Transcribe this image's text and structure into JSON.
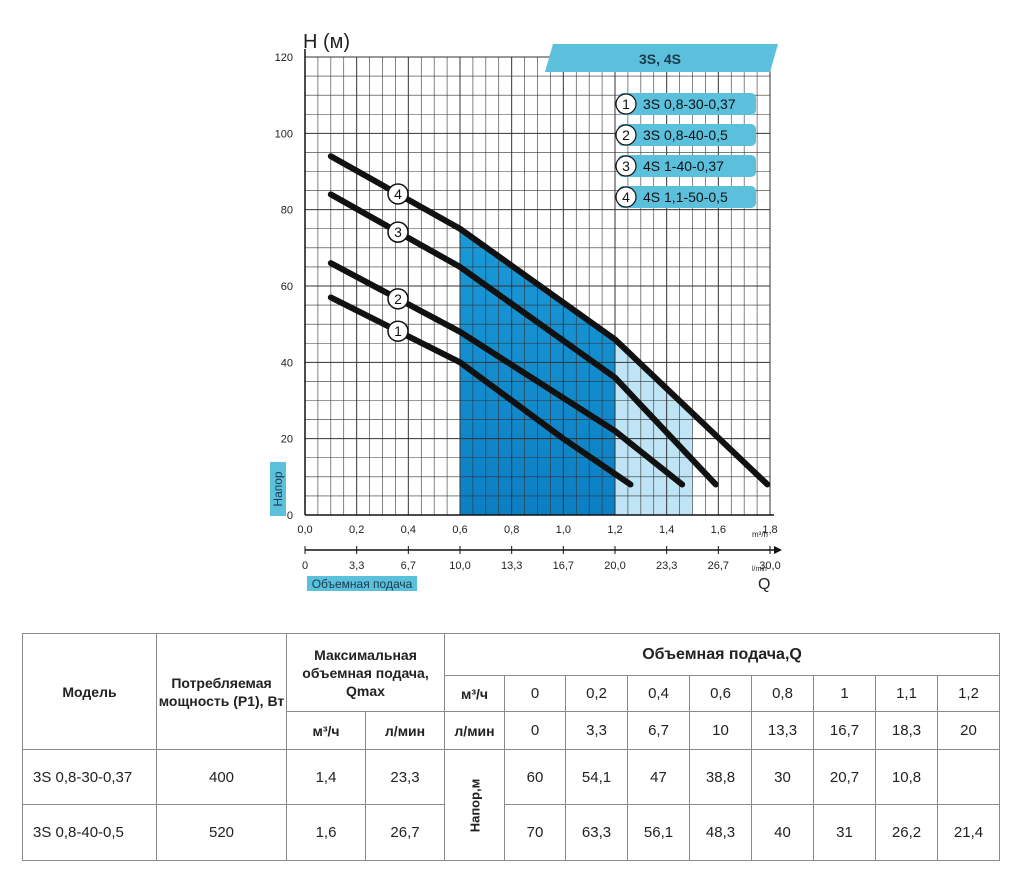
{
  "chart_data": {
    "type": "line",
    "y_axis_title": "H (м)",
    "y_side_label": "Напор",
    "x_side_label": "Объемная подача",
    "q_letter": "Q",
    "ylim": [
      0,
      120
    ],
    "xlim_m3h": [
      0,
      1.8
    ],
    "xlim_lmin": [
      0,
      30
    ],
    "y_ticks": [
      "0",
      "20",
      "40",
      "60",
      "80",
      "100",
      "120"
    ],
    "x_ticks_m3h": [
      "0,0",
      "0,2",
      "0,4",
      "0,6",
      "0,8",
      "1,0",
      "1,2",
      "1,4",
      "1,6",
      "1,8"
    ],
    "x_unit_m3h": "m³/h",
    "x_ticks_lmin": [
      "0",
      "3,3",
      "6,7",
      "10,0",
      "13,3",
      "16,7",
      "20,0",
      "23,3",
      "26,7",
      "30,0"
    ],
    "x_unit_lmin": "l/min",
    "banner": "3S, 4S",
    "grid": true,
    "legend_position": "top-right",
    "series": [
      {
        "name": "3S 0,8-30-0,37",
        "marker": "1",
        "x": [
          0.1,
          0.6,
          1.0,
          1.26
        ],
        "y": [
          57,
          40,
          20,
          8
        ]
      },
      {
        "name": "3S 0,8-40-0,5",
        "marker": "2",
        "x": [
          0.1,
          0.6,
          1.2,
          1.46
        ],
        "y": [
          66,
          48,
          22,
          8
        ]
      },
      {
        "name": "4S 1-40-0,37",
        "marker": "3",
        "x": [
          0.1,
          0.6,
          1.2,
          1.59
        ],
        "y": [
          84,
          65,
          36,
          8
        ]
      },
      {
        "name": "4S 1,1-50-0,5",
        "marker": "4",
        "x": [
          0.1,
          0.6,
          1.2,
          1.79
        ],
        "y": [
          94,
          75,
          46,
          8
        ]
      }
    ],
    "colors": {
      "dark_band": "#1a9ad8",
      "light_band": "#bfe4f5",
      "banner": "#5bc0dc",
      "curve": "#111111"
    }
  },
  "table": {
    "h_model": "Модель",
    "h_power": "Потребляемая мощность (P1), Вт",
    "h_qmax": "Максимальная объемная подача, Qmax",
    "h_flow": "Объемная подача,Q",
    "unit_m3h": "м³/ч",
    "unit_lmin": "л/мин",
    "head_label": "Напор,м",
    "flow_m3h": [
      "0",
      "0,2",
      "0,4",
      "0,6",
      "0,8",
      "1",
      "1,1",
      "1,2"
    ],
    "flow_lmin": [
      "0",
      "3,3",
      "6,7",
      "10",
      "13,3",
      "16,7",
      "18,3",
      "20"
    ],
    "rows": [
      {
        "model": "3S 0,8-30-0,37",
        "power": "400",
        "qmax_m3h": "1,4",
        "qmax_lmin": "23,3",
        "heads": [
          "60",
          "54,1",
          "47",
          "38,8",
          "30",
          "20,7",
          "10,8",
          ""
        ]
      },
      {
        "model": "3S 0,8-40-0,5",
        "power": "520",
        "qmax_m3h": "1,6",
        "qmax_lmin": "26,7",
        "heads": [
          "70",
          "63,3",
          "56,1",
          "48,3",
          "40",
          "31",
          "26,2",
          "21,4"
        ]
      }
    ]
  }
}
